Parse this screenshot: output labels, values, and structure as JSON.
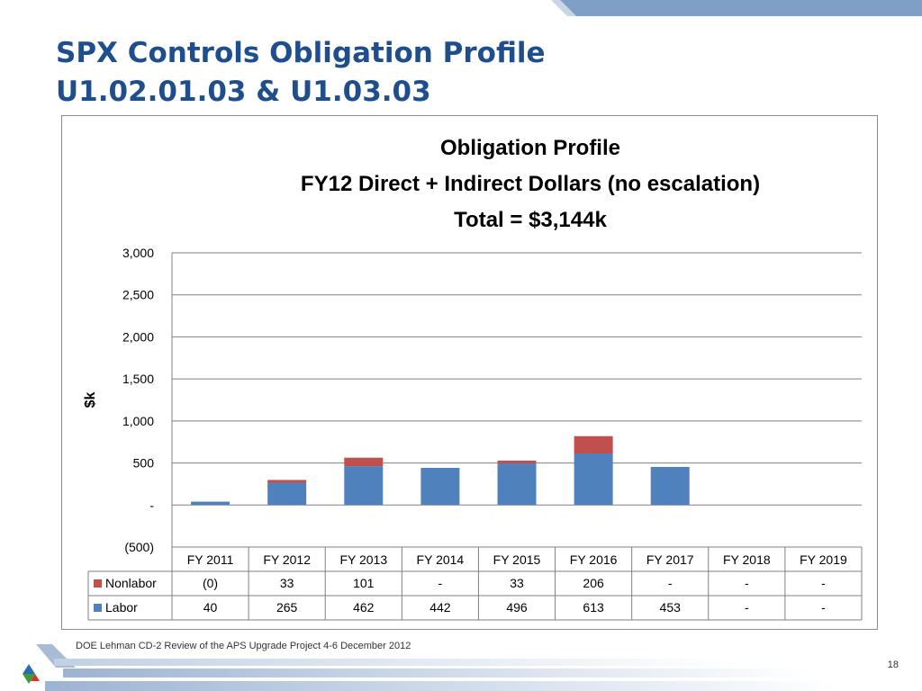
{
  "slide": {
    "title_line1": "SPX Controls Obligation Profile",
    "title_line2": "U1.02.01.03 & U1.03.03",
    "footer": "DOE Lehman CD-2 Review of the APS Upgrade Project    4-6 December  2012",
    "page_number": "18",
    "accent_color": "#1f4e8c",
    "band_color": "#7f9fc6"
  },
  "chart_data": {
    "type": "bar",
    "stacked": true,
    "title_lines": [
      "Obligation Profile",
      "FY12 Direct + Indirect Dollars (no escalation)",
      "Total = $3,144k"
    ],
    "ylabel": "$k",
    "ylim": [
      -500,
      3000
    ],
    "yticks": [
      -500,
      0,
      500,
      1000,
      1500,
      2000,
      2500,
      3000
    ],
    "ytick_labels": [
      "(500)",
      "-",
      "500",
      "1,000",
      "1,500",
      "2,000",
      "2,500",
      "3,000"
    ],
    "grid": true,
    "legend_placement": "data-table",
    "categories": [
      "FY 2011",
      "FY 2012",
      "FY 2013",
      "FY 2014",
      "FY 2015",
      "FY 2016",
      "FY 2017",
      "FY 2018",
      "FY 2019"
    ],
    "series": [
      {
        "name": "Labor",
        "color": "#4f81bd",
        "values": [
          40,
          265,
          462,
          442,
          496,
          613,
          453,
          0,
          0
        ],
        "table_labels": [
          "40",
          "265",
          "462",
          "442",
          "496",
          "613",
          "453",
          "-",
          "-"
        ]
      },
      {
        "name": "Nonlabor",
        "color": "#c0504d",
        "values": [
          0,
          33,
          101,
          0,
          33,
          206,
          0,
          0,
          0
        ],
        "table_labels": [
          "(0)",
          "33",
          "101",
          "-",
          "33",
          "206",
          "-",
          "-",
          "-"
        ]
      }
    ]
  }
}
